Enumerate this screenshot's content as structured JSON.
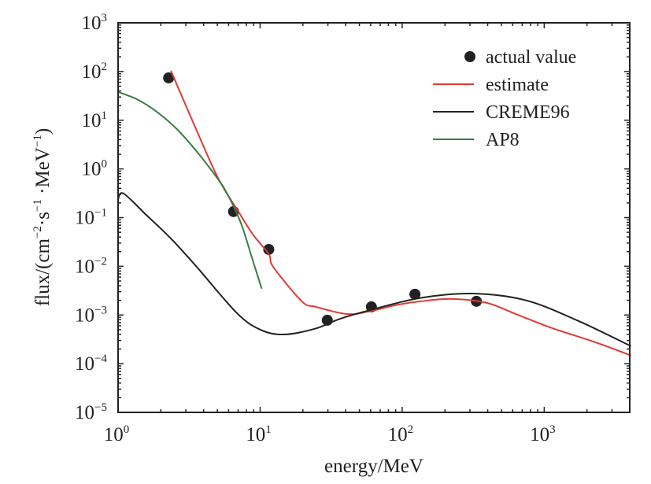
{
  "chart_data": {
    "type": "line",
    "xscale": "log",
    "yscale": "log",
    "xlim": [
      1,
      4000
    ],
    "ylim": [
      1e-05,
      1000
    ],
    "xlabel": "energy/MeV",
    "ylabel_parts": [
      {
        "t": "flux/(cm",
        "sup": false
      },
      {
        "t": "−2",
        "sup": true
      },
      {
        "t": "·s",
        "sup": false
      },
      {
        "t": "−1",
        "sup": true
      },
      {
        "t": " ·MeV",
        "sup": false
      },
      {
        "t": "−1",
        "sup": true
      },
      {
        "t": ")",
        "sup": false
      }
    ],
    "x_ticks": [
      {
        "value": 1,
        "base": "10",
        "exp": "0"
      },
      {
        "value": 10,
        "base": "10",
        "exp": "1"
      },
      {
        "value": 100,
        "base": "10",
        "exp": "2"
      },
      {
        "value": 1000,
        "base": "10",
        "exp": "3"
      }
    ],
    "y_ticks": [
      {
        "value": 1000,
        "base": "10",
        "exp": "3"
      },
      {
        "value": 100,
        "base": "10",
        "exp": "2"
      },
      {
        "value": 10,
        "base": "10",
        "exp": "1"
      },
      {
        "value": 1,
        "base": "10",
        "exp": "0"
      },
      {
        "value": 0.1,
        "base": "10",
        "exp": "−1"
      },
      {
        "value": 0.01,
        "base": "10",
        "exp": "−2"
      },
      {
        "value": 0.001,
        "base": "10",
        "exp": "−3"
      },
      {
        "value": 0.0001,
        "base": "10",
        "exp": "−4"
      },
      {
        "value": 1e-05,
        "base": "10",
        "exp": "−5"
      }
    ],
    "legend_position": "top-right",
    "series": [
      {
        "name": "actual value",
        "kind": "scatter",
        "color": "#222222",
        "x": [
          2.27,
          6.5,
          11.5,
          29.7,
          60.7,
          123,
          333
        ],
        "y": [
          74,
          0.133,
          0.0222,
          0.00078,
          0.00147,
          0.00267,
          0.00191
        ]
      },
      {
        "name": "estimate",
        "kind": "line",
        "color": "#e03a33",
        "log_x": [
          0.372,
          0.556,
          0.706,
          0.85,
          0.95,
          1.061,
          1.094,
          1.294,
          1.389,
          1.611,
          1.761,
          1.95,
          2.128,
          2.35,
          2.594,
          2.8,
          3.056,
          3.35,
          3.611
        ],
        "log_y": [
          2.015,
          0.77,
          -0.2,
          -0.89,
          -1.35,
          -1.75,
          -2.02,
          -2.72,
          -2.83,
          -2.98,
          -2.93,
          -2.8,
          -2.72,
          -2.67,
          -2.75,
          -2.98,
          -3.27,
          -3.55,
          -3.83
        ]
      },
      {
        "name": "CREME96",
        "kind": "line",
        "color": "#222222",
        "log_x": [
          0,
          0.039,
          0.2,
          0.372,
          0.556,
          0.833,
          1.0,
          1.167,
          1.389,
          1.561,
          1.761,
          2.128,
          2.5,
          2.872,
          3.239,
          3.611
        ],
        "log_y": [
          -0.62,
          -0.506,
          -0.95,
          -1.43,
          -2.02,
          -2.95,
          -3.3,
          -3.4,
          -3.28,
          -3.08,
          -2.91,
          -2.65,
          -2.56,
          -2.7,
          -3.12,
          -3.64
        ]
      },
      {
        "name": "AP8",
        "kind": "line",
        "color": "#3a7d44",
        "log_x": [
          0,
          0.14,
          0.278,
          0.42,
          0.556,
          0.65,
          0.739,
          0.81,
          0.872,
          0.94,
          1.011
        ],
        "log_y": [
          1.58,
          1.42,
          1.16,
          0.8,
          0.35,
          0.0,
          -0.36,
          -0.75,
          -1.17,
          -1.8,
          -2.46
        ]
      }
    ]
  }
}
